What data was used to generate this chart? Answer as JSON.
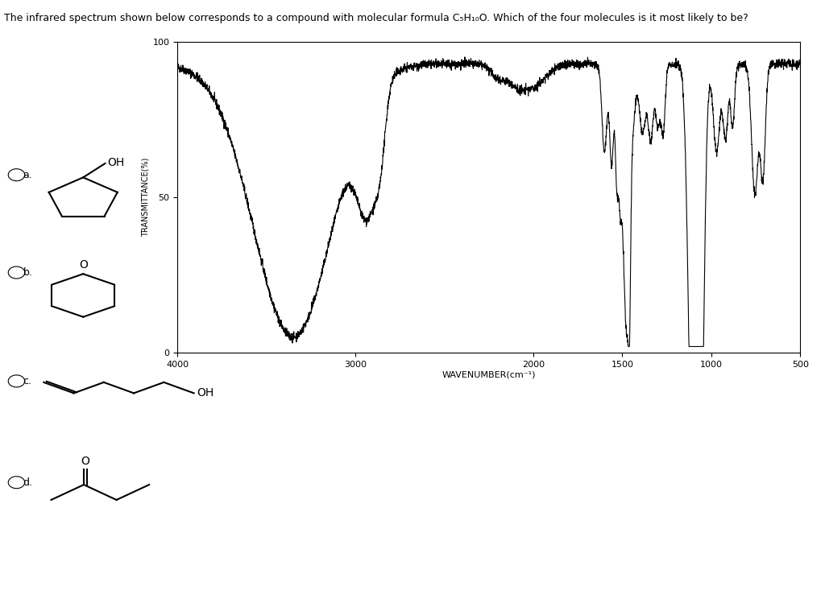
{
  "title": "The infrared spectrum shown below corresponds to a compound with molecular formula C₅H₁₀O. Which of the four molecules is it most likely to be?",
  "ylabel": "TRANSMITTANCE(%)",
  "xlabel": "WAVENUMBER(cm⁻¹)",
  "xlim": [
    4000,
    500
  ],
  "ylim": [
    0,
    100
  ],
  "yticks": [
    0,
    50,
    100
  ],
  "xticks": [
    4000,
    3000,
    2000,
    1500,
    1000,
    500
  ],
  "bg_color": "#ffffff",
  "line_color": "#000000"
}
